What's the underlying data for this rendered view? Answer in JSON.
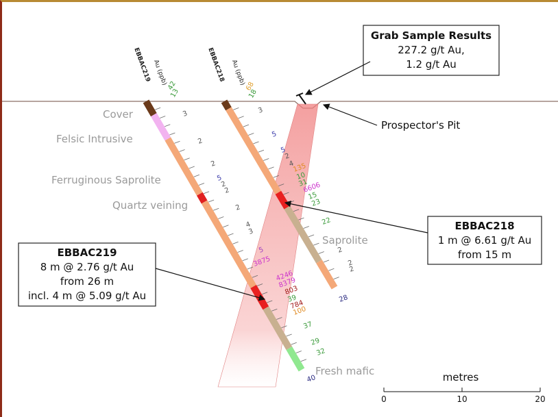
{
  "grab_sample": {
    "title": "Grab Sample Results",
    "lines": [
      "227.2 g/t Au,",
      "1.2 g/t Au"
    ]
  },
  "pit_label": "Prospector's Pit",
  "lithology": [
    "Cover",
    "Felsic Intrusive",
    "Ferruginous Saprolite",
    "Quartz veining",
    "Saprolite",
    "Fresh mafic"
  ],
  "holes": [
    {
      "name": "EBBAC219",
      "assay_header": "Au (ppb)",
      "assays": [
        {
          "value": 42,
          "color": "#3a9a3a"
        },
        {
          "value": 13,
          "color": "#3a9a3a"
        },
        {
          "value": 3,
          "color": "#555555"
        },
        {
          "value": 2,
          "color": "#555555"
        },
        {
          "value": 2,
          "color": "#555555"
        },
        {
          "value": 5,
          "color": "#3a3aaa"
        },
        {
          "value": 2,
          "color": "#555555"
        },
        {
          "value": 2,
          "color": "#555555"
        },
        {
          "value": 2,
          "color": "#555555"
        },
        {
          "value": 4,
          "color": "#555555"
        },
        {
          "value": 3,
          "color": "#555555"
        },
        {
          "value": 5,
          "color": "#a040c0"
        },
        {
          "value": 3875,
          "color": "#cc33cc"
        },
        {
          "value": 4246,
          "color": "#cc33cc"
        },
        {
          "value": 8379,
          "color": "#cc33cc"
        },
        {
          "value": 803,
          "color": "#a01818"
        },
        {
          "value": 39,
          "color": "#3a9a3a"
        },
        {
          "value": 784,
          "color": "#a01818"
        },
        {
          "value": 100,
          "color": "#e08a20"
        },
        {
          "value": 37,
          "color": "#3a9a3a"
        },
        {
          "value": 29,
          "color": "#3a9a3a"
        },
        {
          "value": 32,
          "color": "#3a9a3a"
        },
        {
          "value": 40,
          "color": "#2a2a80"
        }
      ]
    },
    {
      "name": "EBBAC218",
      "assay_header": "Au (ppb)",
      "assays": [
        {
          "value": 68,
          "color": "#e0a030"
        },
        {
          "value": 18,
          "color": "#3a9a3a"
        },
        {
          "value": 3,
          "color": "#555555"
        },
        {
          "value": 5,
          "color": "#3a3aaa"
        },
        {
          "value": 5,
          "color": "#3a3aaa"
        },
        {
          "value": 2,
          "color": "#555555"
        },
        {
          "value": 4,
          "color": "#555555"
        },
        {
          "value": 135,
          "color": "#e08a20"
        },
        {
          "value": 10,
          "color": "#3a9a3a"
        },
        {
          "value": 31,
          "color": "#3a9a3a"
        },
        {
          "value": 6606,
          "color": "#cc33cc"
        },
        {
          "value": 15,
          "color": "#3a9a3a"
        },
        {
          "value": 23,
          "color": "#3a9a3a"
        },
        {
          "value": 22,
          "color": "#3a9a3a"
        },
        {
          "value": 2,
          "color": "#555555"
        },
        {
          "value": 2,
          "color": "#555555"
        },
        {
          "value": 2,
          "color": "#555555"
        },
        {
          "value": 28,
          "color": "#2a2a80"
        }
      ]
    }
  ],
  "intercepts": [
    {
      "title": "EBBAC218",
      "lines": [
        "1 m @ 6.61 g/t Au",
        "from 15 m"
      ]
    },
    {
      "title": "EBBAC219",
      "lines": [
        "8 m @ 2.76 g/t Au",
        "from 26 m",
        "incl. 4 m @ 5.09 g/t Au"
      ]
    }
  ],
  "scale": {
    "label": "metres",
    "ticks": [
      0,
      10,
      20
    ]
  }
}
